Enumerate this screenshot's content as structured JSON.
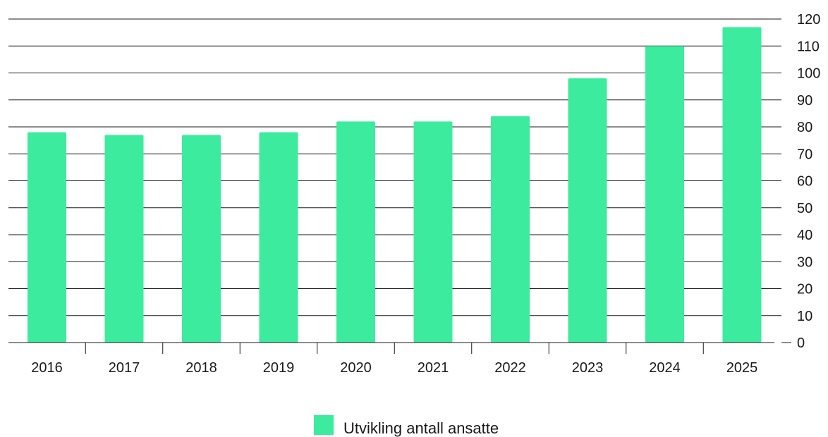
{
  "chart_data": {
    "type": "bar",
    "categories": [
      "2016",
      "2017",
      "2018",
      "2019",
      "2020",
      "2021",
      "2022",
      "2023",
      "2024",
      "2025"
    ],
    "series": [
      {
        "name": "Utvikling antall ansatte",
        "values": [
          78,
          77,
          77,
          78,
          82,
          82,
          84,
          98,
          110,
          117
        ]
      }
    ],
    "ylim": [
      0,
      120
    ],
    "yticks": [
      0,
      10,
      20,
      30,
      40,
      50,
      60,
      70,
      80,
      90,
      100,
      110,
      120
    ],
    "y_axis_side": "right",
    "grid": true,
    "legend_position": "bottom-center",
    "colors": {
      "bar": "#3deb9e",
      "grid": "#1a1a1a"
    }
  }
}
